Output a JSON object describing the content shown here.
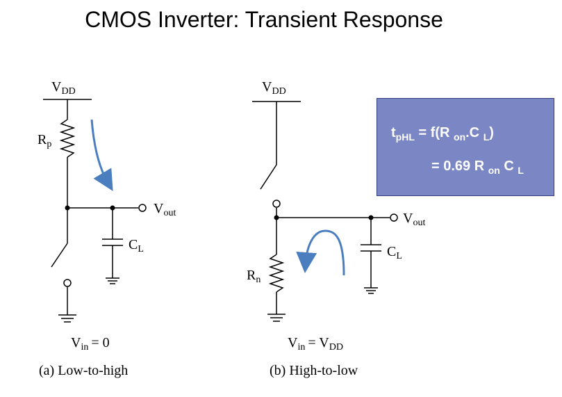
{
  "title": "CMOS Inverter: Transient Response",
  "circuit_a": {
    "vdd": "V",
    "vdd_sub": "DD",
    "resistor": "R",
    "resistor_sub": "p",
    "vout": "V",
    "vout_sub": "out",
    "cap": "C",
    "cap_sub": "L",
    "vin": "V",
    "vin_sub": "in",
    "vin_value": "=  0",
    "caption": "(a) Low-to-high"
  },
  "circuit_b": {
    "vdd": "V",
    "vdd_sub": "DD",
    "resistor": "R",
    "resistor_sub": "n",
    "vout": "V",
    "vout_sub": "out",
    "cap": "C",
    "cap_sub": "L",
    "vin": "V",
    "vin_sub": "in",
    "vin_value": "=  V",
    "vin_value_sub": "DD",
    "caption": "(b) High-to-low"
  },
  "equation": {
    "lhs": "t",
    "lhs_sub": "pHL",
    "line1_mid": " = f(R ",
    "line1_on": "on",
    "line1_c": ".C ",
    "line1_l": "L",
    "line1_end": ")",
    "line2_mid": "= 0.69 R ",
    "line2_on": "on",
    "line2_c": " C ",
    "line2_l": "L"
  },
  "colors": {
    "arrow": "#4a7ebf",
    "box_bg": "#7b86c4",
    "box_text": "#ffffff"
  }
}
